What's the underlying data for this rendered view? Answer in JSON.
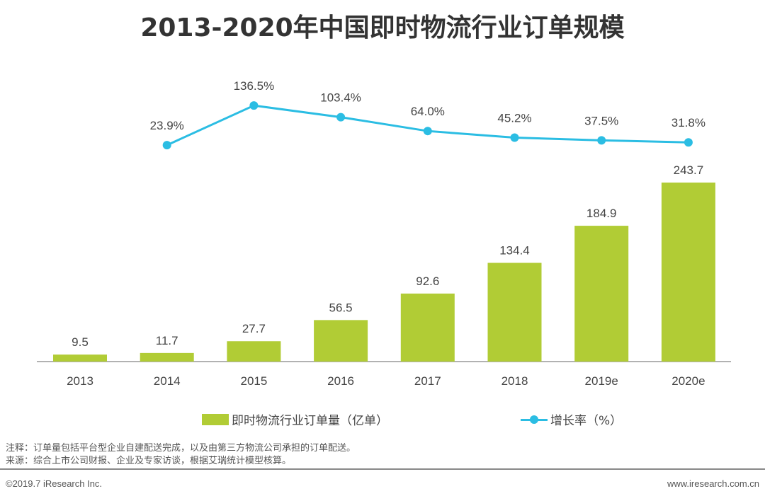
{
  "chart_data": {
    "type": "bar+line",
    "title": "2013-2020年中国即时物流行业订单规模",
    "categories": [
      "2013",
      "2014",
      "2015",
      "2016",
      "2017",
      "2018",
      "2019e",
      "2020e"
    ],
    "series": [
      {
        "name": "即时物流行业订单量（亿单）",
        "type": "bar",
        "values": [
          9.5,
          11.7,
          27.7,
          56.5,
          92.6,
          134.4,
          184.9,
          243.7
        ],
        "labels": [
          "9.5",
          "11.7",
          "27.7",
          "56.5",
          "92.6",
          "134.4",
          "184.9",
          "243.7"
        ],
        "color": "#b1cc35"
      },
      {
        "name": "增长率（%）",
        "type": "line",
        "values": [
          null,
          23.9,
          136.5,
          103.4,
          64.0,
          45.2,
          37.5,
          31.8
        ],
        "labels": [
          "",
          "23.9%",
          "136.5%",
          "103.4%",
          "64.0%",
          "45.2%",
          "37.5%",
          "31.8%"
        ],
        "color": "#2bbde3"
      }
    ],
    "grid": false,
    "legend_placement": "bottom"
  },
  "notes": {
    "note": "注释：订单量包括平台型企业自建配送完成，以及由第三方物流公司承担的订单配送。",
    "source": "来源：综合上市公司财报、企业及专家访谈，根据艾瑞统计模型核算。"
  },
  "footer": {
    "copyright": "©2019.7 iResearch Inc.",
    "website": "www.iresearch.com.cn"
  }
}
